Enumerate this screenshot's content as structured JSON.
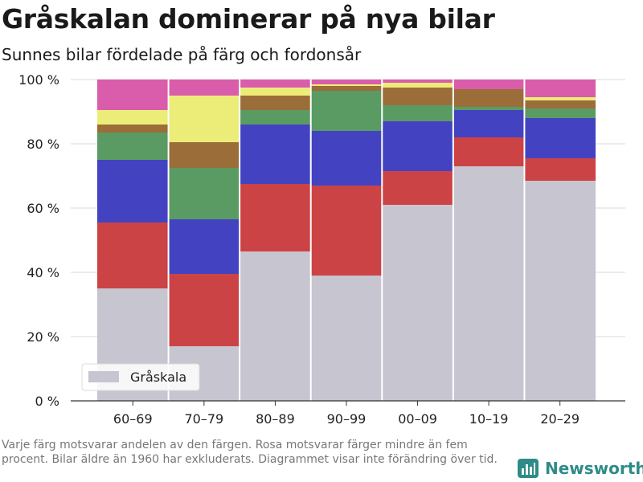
{
  "title": "Gråskalan dominerar på nya bilar",
  "subtitle": "Sunnes bilar fördelade på färg och fordonsår",
  "footnote": "Varje färg motsvarar andelen av den färgen. Rosa motsvarar färger mindre än fem procent. Bilar äldre än 1960 har exkluderats. Diagrammet visar inte förändring över tid.",
  "brand": {
    "name": "Newsworthy",
    "color": "#2e8b87"
  },
  "colors": {
    "Gråskala": "#c6c5d0",
    "red": "#cc4345",
    "blue": "#4343c2",
    "green": "#5a9b63",
    "brown": "#9b6d38",
    "yellow": "#eced78",
    "pink": "#d95daa"
  },
  "chart_data": {
    "type": "bar",
    "stacked": true,
    "categories": [
      "60–69",
      "70–79",
      "80–89",
      "90–99",
      "00–09",
      "10–19",
      "20–29"
    ],
    "series": [
      {
        "name": "Gråskala",
        "color_key": "Gråskala",
        "values": [
          35,
          17,
          46.5,
          39,
          61,
          73,
          68.5
        ]
      },
      {
        "color_key": "red",
        "values": [
          20.5,
          22.5,
          21,
          28,
          10.5,
          9,
          7
        ]
      },
      {
        "color_key": "blue",
        "values": [
          19.5,
          17,
          18.5,
          17,
          15.5,
          8.5,
          12.5
        ]
      },
      {
        "color_key": "green",
        "values": [
          8.5,
          16,
          4.5,
          12.5,
          5,
          1,
          3
        ]
      },
      {
        "color_key": "brown",
        "values": [
          2.5,
          8,
          4.5,
          1.5,
          5.5,
          5.5,
          2.5
        ]
      },
      {
        "color_key": "yellow",
        "values": [
          4.5,
          14.5,
          2.5,
          0.5,
          1.5,
          0,
          1
        ]
      },
      {
        "color_key": "pink",
        "values": [
          9.5,
          5,
          2.5,
          1.5,
          1,
          3,
          5.5
        ]
      }
    ],
    "ylim": [
      0,
      100
    ],
    "yticks": [
      0,
      20,
      40,
      60,
      80,
      100
    ],
    "ytick_labels": [
      "0 %",
      "20 %",
      "40 %",
      "60 %",
      "80 %",
      "100 %"
    ],
    "grid": true,
    "legend": {
      "position": "bottom-left",
      "entries": [
        "Gråskala"
      ]
    }
  }
}
